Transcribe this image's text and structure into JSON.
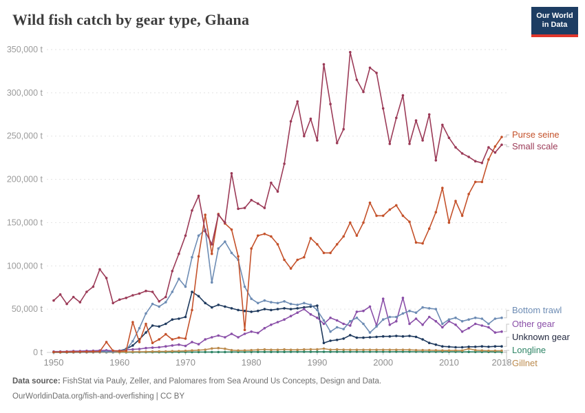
{
  "title": "Wild fish catch by gear type, Ghana",
  "logo": {
    "line1": "Our World",
    "line2": "in Data"
  },
  "footer": {
    "source_label": "Data source:",
    "source_text": " FishStat via Pauly, Zeller, and Palomares from Sea Around Us Concepts, Design and Data.",
    "link_line": "OurWorldinData.org/fish-and-overfishing | CC BY"
  },
  "colors": {
    "grid": "#e2e2e2",
    "axis": "#cccccc",
    "tick_text": "#9b9b9b",
    "connector": "#c4c4c4",
    "logo_bg": "#1d3d63",
    "logo_bar": "#e0362c"
  },
  "chart_data": {
    "type": "line",
    "title": "Wild fish catch by gear type, Ghana",
    "xlabel": "",
    "ylabel": "",
    "unit": "tonnes",
    "ytick_suffix": " t",
    "ylim": [
      0,
      350000
    ],
    "ytick_step": 50000,
    "xlim": [
      1948.5,
      2019.5
    ],
    "xticks": [
      1950,
      1960,
      1970,
      1980,
      1990,
      2000,
      2010,
      2018
    ],
    "grid": "horizontal-dashed",
    "legend_position": "right-of-line-ends",
    "x": [
      1950,
      1951,
      1952,
      1953,
      1954,
      1955,
      1956,
      1957,
      1958,
      1959,
      1960,
      1961,
      1962,
      1963,
      1964,
      1965,
      1966,
      1967,
      1968,
      1969,
      1970,
      1971,
      1972,
      1973,
      1974,
      1975,
      1976,
      1977,
      1978,
      1979,
      1980,
      1981,
      1982,
      1983,
      1984,
      1985,
      1986,
      1987,
      1988,
      1989,
      1990,
      1991,
      1992,
      1993,
      1994,
      1995,
      1996,
      1997,
      1998,
      1999,
      2000,
      2001,
      2002,
      2003,
      2004,
      2005,
      2006,
      2007,
      2008,
      2009,
      2010,
      2011,
      2012,
      2013,
      2014,
      2015,
      2016,
      2017,
      2018
    ],
    "series": [
      {
        "name": "Purse seine",
        "color": "#c4512a",
        "values": [
          500,
          500,
          600,
          700,
          800,
          900,
          1000,
          1200,
          12000,
          2000,
          1500,
          2000,
          35000,
          12000,
          33000,
          11000,
          15000,
          21000,
          15000,
          17000,
          16000,
          49000,
          111000,
          159000,
          114000,
          160000,
          149000,
          142000,
          111000,
          26000,
          120000,
          135000,
          137000,
          134000,
          125000,
          107000,
          97000,
          107000,
          110000,
          132000,
          125000,
          115000,
          115000,
          125000,
          134000,
          150000,
          135000,
          150000,
          173000,
          158000,
          158000,
          165000,
          170000,
          158000,
          151000,
          127000,
          126000,
          143000,
          162000,
          190000,
          150000,
          175000,
          158000,
          183000,
          197000,
          197000,
          223000,
          238000,
          249000
        ]
      },
      {
        "name": "Small scale",
        "color": "#9b3a57",
        "values": [
          60000,
          67000,
          56000,
          64000,
          58000,
          70000,
          76000,
          96000,
          86000,
          57000,
          61000,
          63000,
          66000,
          68000,
          71000,
          70000,
          59000,
          64000,
          94000,
          114000,
          135000,
          164000,
          181000,
          140000,
          125000,
          159000,
          150000,
          207000,
          166000,
          167000,
          176000,
          172000,
          167000,
          196000,
          186000,
          218000,
          267000,
          290000,
          250000,
          270000,
          245000,
          333000,
          287000,
          242000,
          258000,
          347000,
          315000,
          301000,
          329000,
          323000,
          282000,
          241000,
          271000,
          297000,
          241000,
          268000,
          245000,
          275000,
          222000,
          263000,
          248000,
          237000,
          230000,
          226000,
          221000,
          219000,
          237000,
          231000,
          240000
        ]
      },
      {
        "name": "Bottom trawl",
        "color": "#6d8cb4",
        "values": [
          300,
          300,
          400,
          400,
          500,
          500,
          600,
          700,
          800,
          900,
          1500,
          3000,
          13000,
          28000,
          45000,
          56000,
          53000,
          58000,
          70000,
          85000,
          76000,
          110000,
          135000,
          142000,
          81000,
          120000,
          128000,
          115000,
          107000,
          76000,
          62000,
          57000,
          60000,
          58000,
          57000,
          59000,
          56000,
          55000,
          57000,
          55000,
          49000,
          37000,
          24000,
          29000,
          27000,
          36000,
          40000,
          33000,
          23000,
          30000,
          38000,
          41000,
          41000,
          45000,
          48000,
          46000,
          52000,
          51000,
          50000,
          33000,
          38000,
          40000,
          36000,
          38000,
          40000,
          39000,
          33000,
          39000,
          40000
        ]
      },
      {
        "name": "Other gear",
        "color": "#8a4fa8",
        "values": [
          1000,
          1000,
          1200,
          1500,
          1500,
          1800,
          2000,
          2200,
          2500,
          2000,
          2000,
          3000,
          3500,
          4000,
          5000,
          5500,
          6000,
          7000,
          8000,
          9000,
          7500,
          12000,
          9500,
          15000,
          17500,
          19500,
          17500,
          21500,
          17500,
          21500,
          24000,
          22500,
          28000,
          32000,
          35000,
          38000,
          42000,
          46000,
          50000,
          44000,
          40000,
          33000,
          40000,
          37000,
          33000,
          31000,
          47000,
          48000,
          53000,
          31000,
          62000,
          32000,
          36000,
          63000,
          33000,
          39000,
          32000,
          41000,
          36000,
          29000,
          36000,
          32000,
          24000,
          28000,
          33000,
          31000,
          29000,
          23000,
          24000
        ]
      },
      {
        "name": "Unknown gear",
        "color": "#1f3a5e",
        "values": [
          400,
          400,
          500,
          600,
          700,
          800,
          900,
          1000,
          1200,
          1300,
          2000,
          4000,
          8000,
          15000,
          23000,
          31000,
          30000,
          33000,
          38000,
          39000,
          41000,
          70000,
          65000,
          57000,
          52000,
          55000,
          53000,
          51000,
          49000,
          48000,
          47000,
          48000,
          50000,
          49000,
          50000,
          51000,
          50000,
          51000,
          52000,
          53000,
          54000,
          11000,
          13500,
          14500,
          16000,
          20000,
          17000,
          17000,
          17500,
          18000,
          18500,
          18500,
          19000,
          18500,
          19000,
          18000,
          15000,
          11000,
          9000,
          7000,
          6500,
          6000,
          6000,
          6500,
          6500,
          7000,
          6500,
          7000,
          7000
        ]
      },
      {
        "name": "Longline",
        "color": "#2d8465",
        "values": [
          100,
          100,
          100,
          100,
          150,
          150,
          150,
          200,
          200,
          200,
          200,
          250,
          250,
          300,
          300,
          300,
          350,
          350,
          400,
          400,
          400,
          450,
          450,
          500,
          500,
          500,
          500,
          550,
          550,
          550,
          600,
          600,
          600,
          650,
          650,
          650,
          700,
          700,
          700,
          700,
          700,
          700,
          750,
          750,
          750,
          800,
          800,
          800,
          800,
          800,
          800,
          800,
          850,
          850,
          850,
          800,
          800,
          750,
          750,
          700,
          700,
          700,
          650,
          650,
          600,
          600,
          600,
          550,
          500
        ]
      },
      {
        "name": "Gillnet",
        "color": "#bb8a4c",
        "values": [
          200,
          200,
          250,
          250,
          300,
          300,
          350,
          350,
          400,
          400,
          500,
          600,
          700,
          800,
          900,
          1000,
          1100,
          1200,
          1400,
          1600,
          1800,
          2200,
          2600,
          3200,
          4500,
          5000,
          4200,
          2600,
          2200,
          2400,
          2600,
          3000,
          3400,
          3000,
          3000,
          3400,
          3000,
          3000,
          3400,
          3600,
          3600,
          4400,
          3200,
          3400,
          3200,
          3000,
          3000,
          3000,
          3000,
          3000,
          3000,
          3000,
          3000,
          3000,
          3000,
          2600,
          2600,
          2600,
          2500,
          2200,
          2200,
          2400,
          2200,
          4200,
          2600,
          2200,
          2000,
          2000,
          2000
        ]
      }
    ]
  }
}
